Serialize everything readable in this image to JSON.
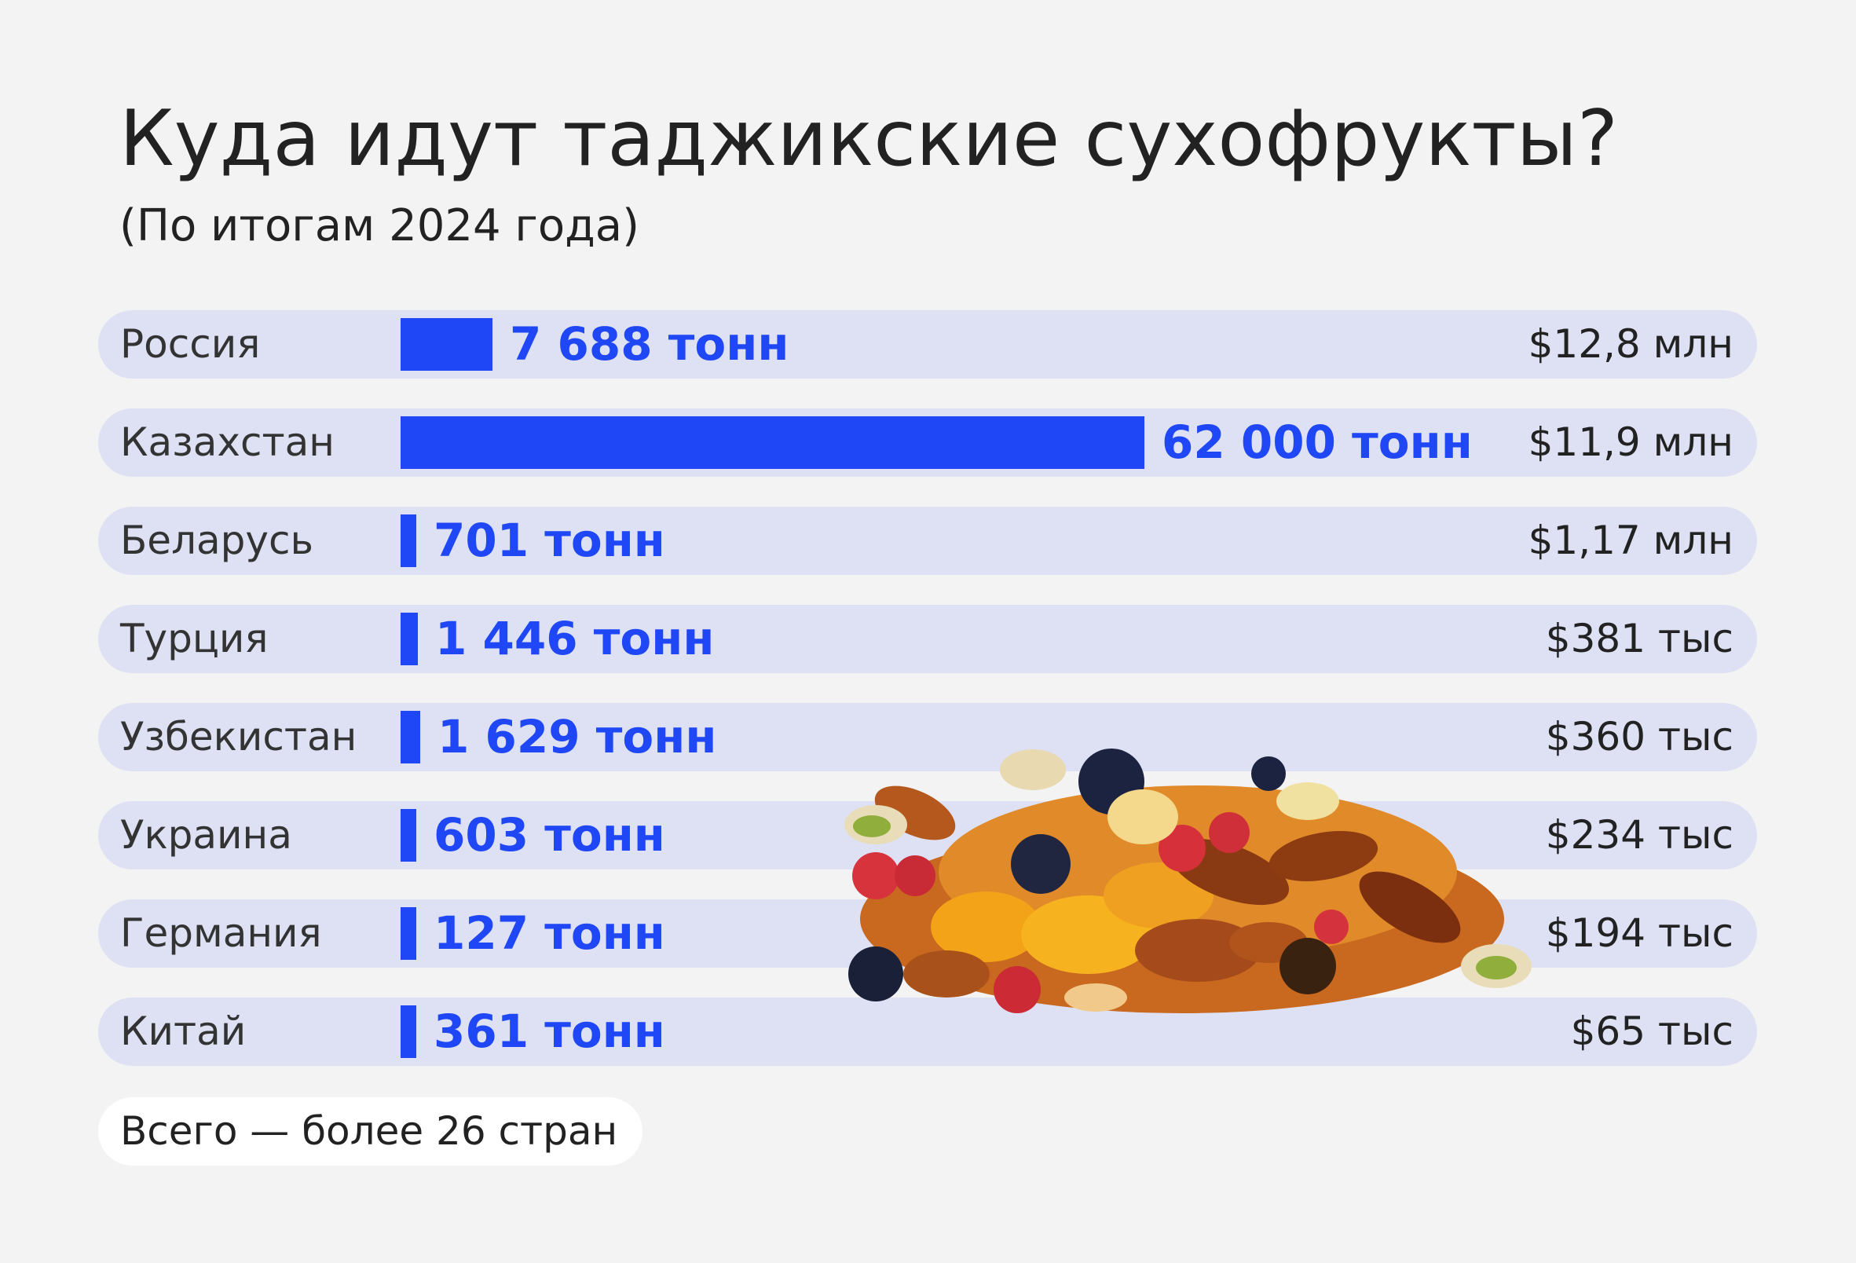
{
  "title": "Куда идут таджикские сухофрукты?",
  "subtitle": "(По итогам 2024 года)",
  "footer_note": "Всего — более 26 стран",
  "colors": {
    "bar": "#1f47f5",
    "row_background": "#dde1f3",
    "page_background": "#f3f3f3"
  },
  "illustration": "dried-fruits-pile-icon",
  "chart_data": {
    "type": "bar",
    "orientation": "horizontal",
    "categories": [
      "Россия",
      "Казахстан",
      "Беларусь",
      "Турция",
      "Узбекистан",
      "Украина",
      "Германия",
      "Китай"
    ],
    "series": [
      {
        "values": [
          7688,
          62000,
          701,
          1446,
          1629,
          603,
          127,
          361
        ]
      }
    ],
    "bar_labels": [
      "7 688 тонн",
      "62 000 тонн",
      "701 тонн",
      "1 446 тонн",
      "1 629 тонн",
      "603 тонн",
      "127 тонн",
      "361 тонн"
    ],
    "value_labels": [
      "$12,8 млн",
      "$11,9 млн",
      "$1,17 млн",
      "$381 тыс",
      "$360 тыс",
      "$234 тыс",
      "$194 тыс",
      "$65 тыс"
    ],
    "title": "Куда идут таджикские сухофрукты?",
    "subtitle": "(По итогам 2024 года)",
    "xlabel": "",
    "ylabel": "",
    "grid": false,
    "legend": "none"
  }
}
